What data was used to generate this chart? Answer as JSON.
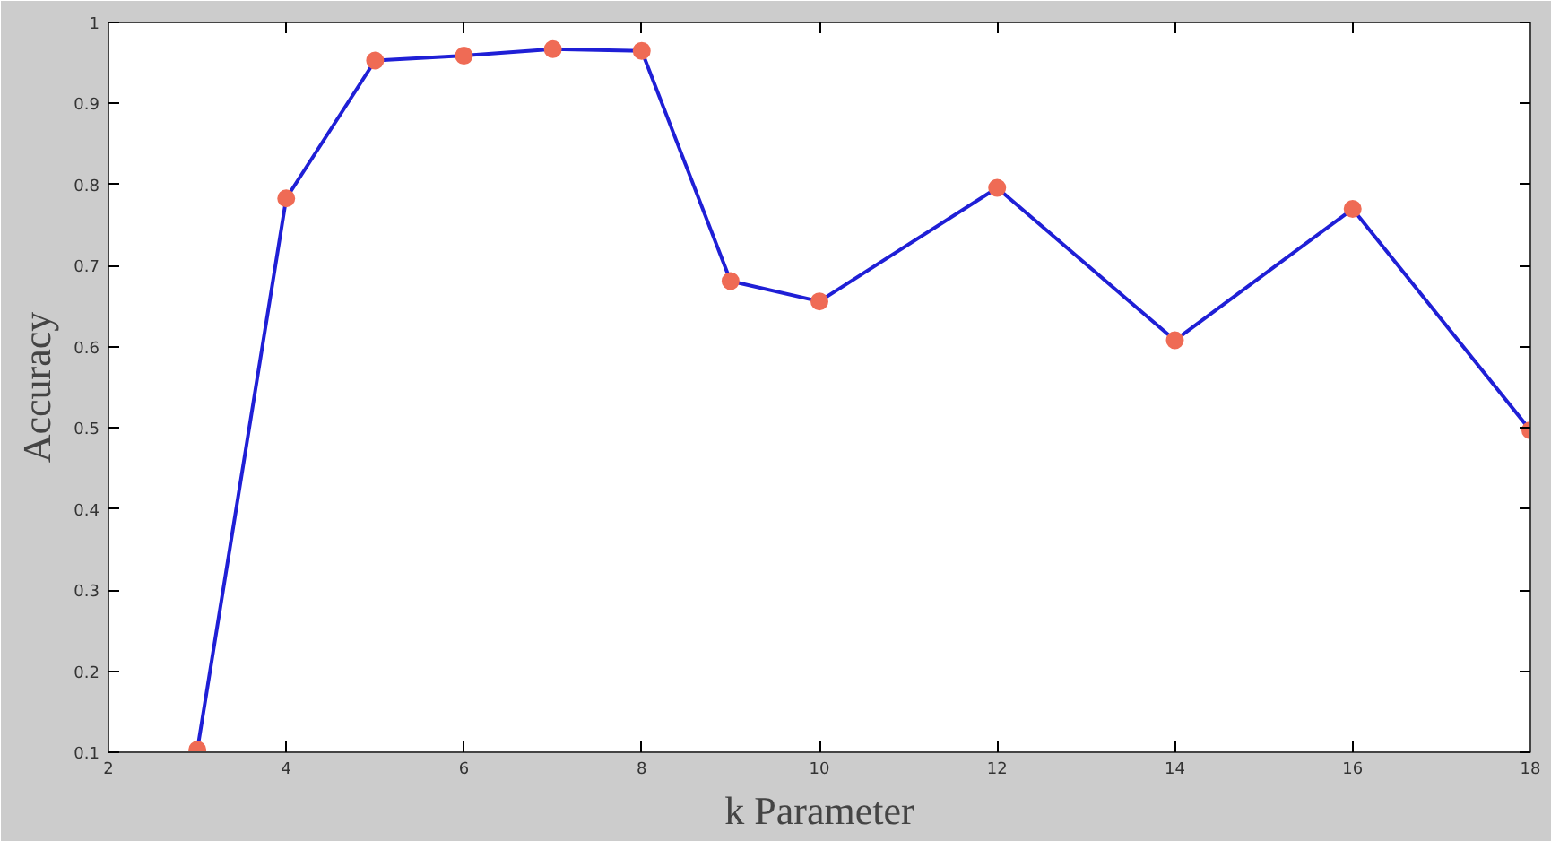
{
  "chart_data": {
    "type": "line",
    "xlabel": "k Parameter",
    "ylabel": "Accuracy",
    "x": [
      3,
      4,
      5,
      6,
      7,
      8,
      9,
      10,
      12,
      14,
      16,
      18
    ],
    "series": [
      {
        "color": "#1f1fd6",
        "colors": [
          "#ef6b55",
          "#ef6b55",
          "#ef6b55",
          "#ef6b55",
          "#ef6b55",
          "#ef6b55",
          "#ef6b55",
          "#ef6b55",
          "#ef6b55",
          "#ef6b55",
          "#ef6b55",
          "#ef6b55"
        ],
        "values": [
          0.103,
          0.783,
          0.953,
          0.959,
          0.967,
          0.965,
          0.681,
          0.656,
          0.796,
          0.608,
          0.77,
          0.497
        ]
      }
    ],
    "xlim": [
      2,
      18
    ],
    "ylim": [
      0.1,
      1
    ],
    "xticks": [
      2,
      4,
      6,
      8,
      10,
      12,
      14,
      16,
      18
    ],
    "yticks": [
      0.1,
      0.2,
      0.3,
      0.4,
      0.5,
      0.6,
      0.7,
      0.8,
      0.9,
      1
    ],
    "grid": false,
    "marker": "circle",
    "line_style": "solid"
  }
}
